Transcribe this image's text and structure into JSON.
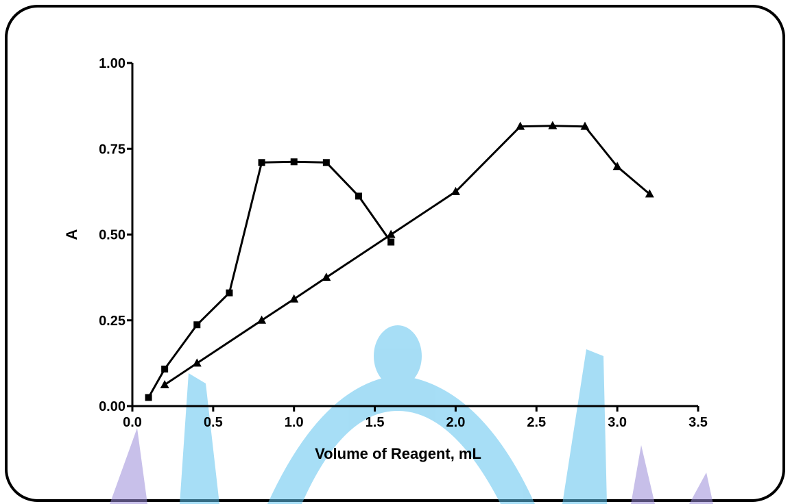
{
  "chart_data": {
    "type": "line",
    "xlabel": "Volume of Reagent, mL",
    "ylabel": "A",
    "xlim": [
      0.0,
      3.5
    ],
    "ylim": [
      0.0,
      1.0
    ],
    "x_ticks": [
      "0.0",
      "0.5",
      "1.0",
      "1.5",
      "2.0",
      "2.5",
      "3.0",
      "3.5"
    ],
    "y_ticks": [
      "0.00",
      "0.25",
      "0.50",
      "0.75",
      "1.00"
    ],
    "grid": false,
    "series": [
      {
        "marker": "square",
        "x": [
          0.1,
          0.2,
          0.4,
          0.6,
          0.8,
          1.0,
          1.2,
          1.4,
          1.6
        ],
        "y": [
          0.025,
          0.108,
          0.237,
          0.33,
          0.71,
          0.712,
          0.71,
          0.612,
          0.478
        ]
      },
      {
        "marker": "triangle",
        "x": [
          0.2,
          0.4,
          0.8,
          1.0,
          1.2,
          1.6,
          2.0,
          2.4,
          2.6,
          2.8,
          3.0,
          3.2
        ],
        "y": [
          0.062,
          0.125,
          0.25,
          0.312,
          0.375,
          0.5,
          0.625,
          0.815,
          0.817,
          0.815,
          0.698,
          0.618
        ]
      }
    ],
    "colors": {
      "line": "#000000",
      "watermark_blue": "#5ec3ee",
      "watermark_purple": "#9a8cd8"
    }
  }
}
